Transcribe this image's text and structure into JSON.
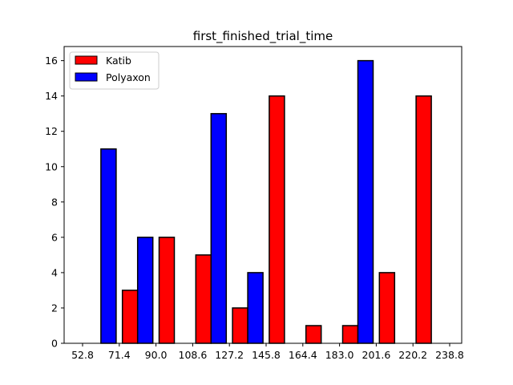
{
  "chart_data": {
    "type": "bar",
    "title": "first_finished_trial_time",
    "xlabel": "",
    "ylabel": "",
    "x_tick_labels": [
      "52.8",
      "71.4",
      "90.0",
      "108.6",
      "127.2",
      "145.8",
      "164.4",
      "183.0",
      "201.6",
      "220.2",
      "238.8"
    ],
    "ylim": [
      0,
      16.8
    ],
    "y_ticks": [
      0,
      2,
      4,
      6,
      8,
      10,
      12,
      14,
      16
    ],
    "grid": false,
    "legend_position": "top-left",
    "series": [
      {
        "name": "Katib",
        "color": "#ff0000",
        "values": [
          0,
          3,
          6,
          5,
          2,
          14,
          1,
          1,
          4,
          14
        ]
      },
      {
        "name": "Polyaxon",
        "color": "#0000ff",
        "values": [
          11,
          6,
          0,
          13,
          4,
          0,
          0,
          16,
          0,
          0
        ]
      }
    ]
  }
}
